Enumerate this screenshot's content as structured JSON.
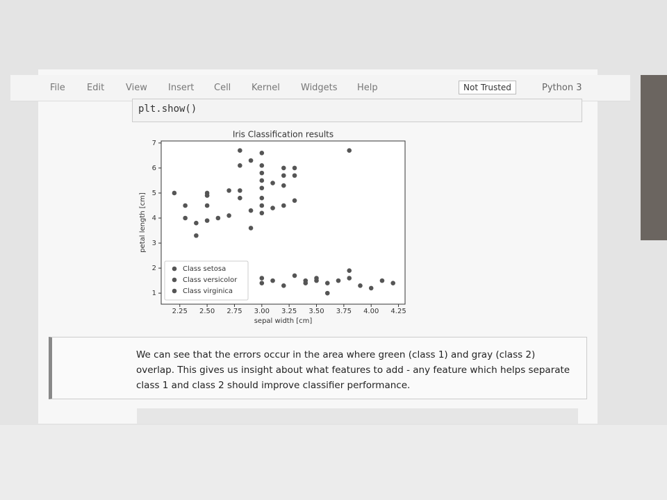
{
  "menu": [
    "File",
    "Edit",
    "View",
    "Insert",
    "Cell",
    "Kernel",
    "Widgets",
    "Help"
  ],
  "trust_label": "Not Trusted",
  "kernel": "Python 3",
  "code": "plt.show()",
  "chart_data": {
    "type": "scatter",
    "title": "Iris Classification results",
    "x_label": "sepal width [cm]",
    "y_label": "petal length [cm]",
    "xlim": [
      2.08,
      4.31
    ],
    "ylim": [
      0.56,
      7.08
    ],
    "xticks": [
      2.25,
      {
        "value": 2.5,
        "label": "2.50"
      },
      2.75,
      {
        "value": 3,
        "label": "3.00"
      },
      3.25,
      {
        "value": 3.5,
        "label": "3.50"
      },
      3.75,
      {
        "value": 4,
        "label": "4.00"
      },
      4.25
    ],
    "yticks": [
      1,
      2,
      3,
      4,
      5,
      6,
      7
    ],
    "legend": "lower left",
    "series": [
      {
        "name": "Class setosa",
        "color": "#555555",
        "x": [
          3.0,
          3.0,
          3.1,
          3.2,
          3.3,
          3.4,
          3.4,
          3.5,
          3.5,
          3.6,
          3.6,
          3.7,
          3.8,
          3.8,
          3.9,
          4.0,
          4.1,
          4.2
        ],
        "y": [
          1.4,
          1.6,
          1.5,
          1.3,
          1.7,
          1.5,
          1.4,
          1.5,
          1.6,
          1.4,
          1.0,
          1.5,
          1.9,
          1.6,
          1.3,
          1.2,
          1.5,
          1.4
        ]
      },
      {
        "name": "Class versicolor",
        "color": "#555555",
        "x": [
          2.3,
          2.3,
          2.4,
          2.4,
          2.5,
          2.5,
          2.6,
          2.7,
          2.8,
          2.9,
          2.9,
          3.0,
          3.0,
          3.1,
          3.2,
          3.3
        ],
        "y": [
          4.0,
          4.5,
          3.3,
          3.8,
          3.9,
          4.5,
          4.0,
          4.1,
          4.8,
          4.3,
          3.6,
          4.2,
          4.5,
          4.4,
          4.5,
          4.7
        ]
      },
      {
        "name": "Class virginica",
        "color": "#555555",
        "x": [
          2.2,
          2.5,
          2.5,
          2.7,
          2.8,
          2.8,
          2.8,
          2.9,
          3.0,
          3.0,
          3.0,
          3.0,
          3.0,
          3.0,
          3.1,
          3.2,
          3.2,
          3.2,
          3.3,
          3.3,
          3.8
        ],
        "y": [
          5.0,
          5.0,
          4.9,
          5.1,
          6.7,
          6.1,
          5.1,
          6.3,
          6.6,
          6.1,
          5.8,
          5.5,
          5.2,
          4.8,
          5.4,
          6.0,
          5.7,
          5.3,
          6.0,
          5.7,
          6.7
        ]
      }
    ]
  },
  "markdown": "We can see that the errors occur in the area where green (class 1) and gray (class 2) overlap. This gives us insight about what features to add - any feature which helps separate class 1 and class 2 should improve classifier performance."
}
